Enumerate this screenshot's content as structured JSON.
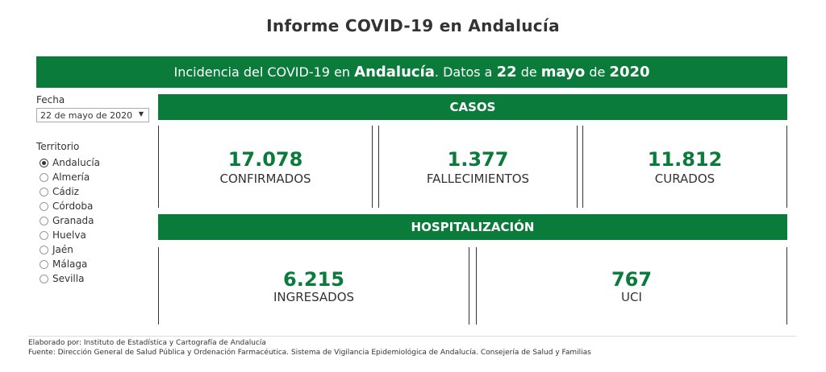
{
  "page": {
    "title": "Informe COVID-19 en Andalucía"
  },
  "banner": {
    "part1": "Incidencia del COVID-19 en ",
    "region": "Andalucía",
    "part2": ". Datos a ",
    "day": "22",
    "part3": " de ",
    "month": "mayo",
    "part4": " de ",
    "year": "2020"
  },
  "filters": {
    "fecha_label": "Fecha",
    "fecha_value": "22 de mayo de 2020",
    "territorio_label": "Territorio",
    "territorios": [
      {
        "label": "Andalucía",
        "selected": true
      },
      {
        "label": "Almería",
        "selected": false
      },
      {
        "label": "Cádiz",
        "selected": false
      },
      {
        "label": "Córdoba",
        "selected": false
      },
      {
        "label": "Granada",
        "selected": false
      },
      {
        "label": "Huelva",
        "selected": false
      },
      {
        "label": "Jaén",
        "selected": false
      },
      {
        "label": "Málaga",
        "selected": false
      },
      {
        "label": "Sevilla",
        "selected": false
      }
    ]
  },
  "casos": {
    "header": "CASOS",
    "confirmados": {
      "value": "17.078",
      "label": "CONFIRMADOS"
    },
    "fallecimientos": {
      "value": "1.377",
      "label": "FALLECIMIENTOS"
    },
    "curados": {
      "value": "11.812",
      "label": "CURADOS"
    }
  },
  "hospitalizacion": {
    "header": "HOSPITALIZACIÓN",
    "ingresados": {
      "value": "6.215",
      "label": "INGRESADOS"
    },
    "uci": {
      "value": "767",
      "label": "UCI"
    }
  },
  "footer": {
    "elaborado": "Elaborado por: Instituto de Estadística y Cartografía de Andalucía",
    "fuente": "Fuente: Dirección General de Salud Pública y Ordenación Farmacéutica. Sistema de Vigilancia Epidemiológica de Andalucía. Consejería de Salud y Familias"
  },
  "colors": {
    "brand_green": "#0a7b3b",
    "text": "#333333"
  }
}
